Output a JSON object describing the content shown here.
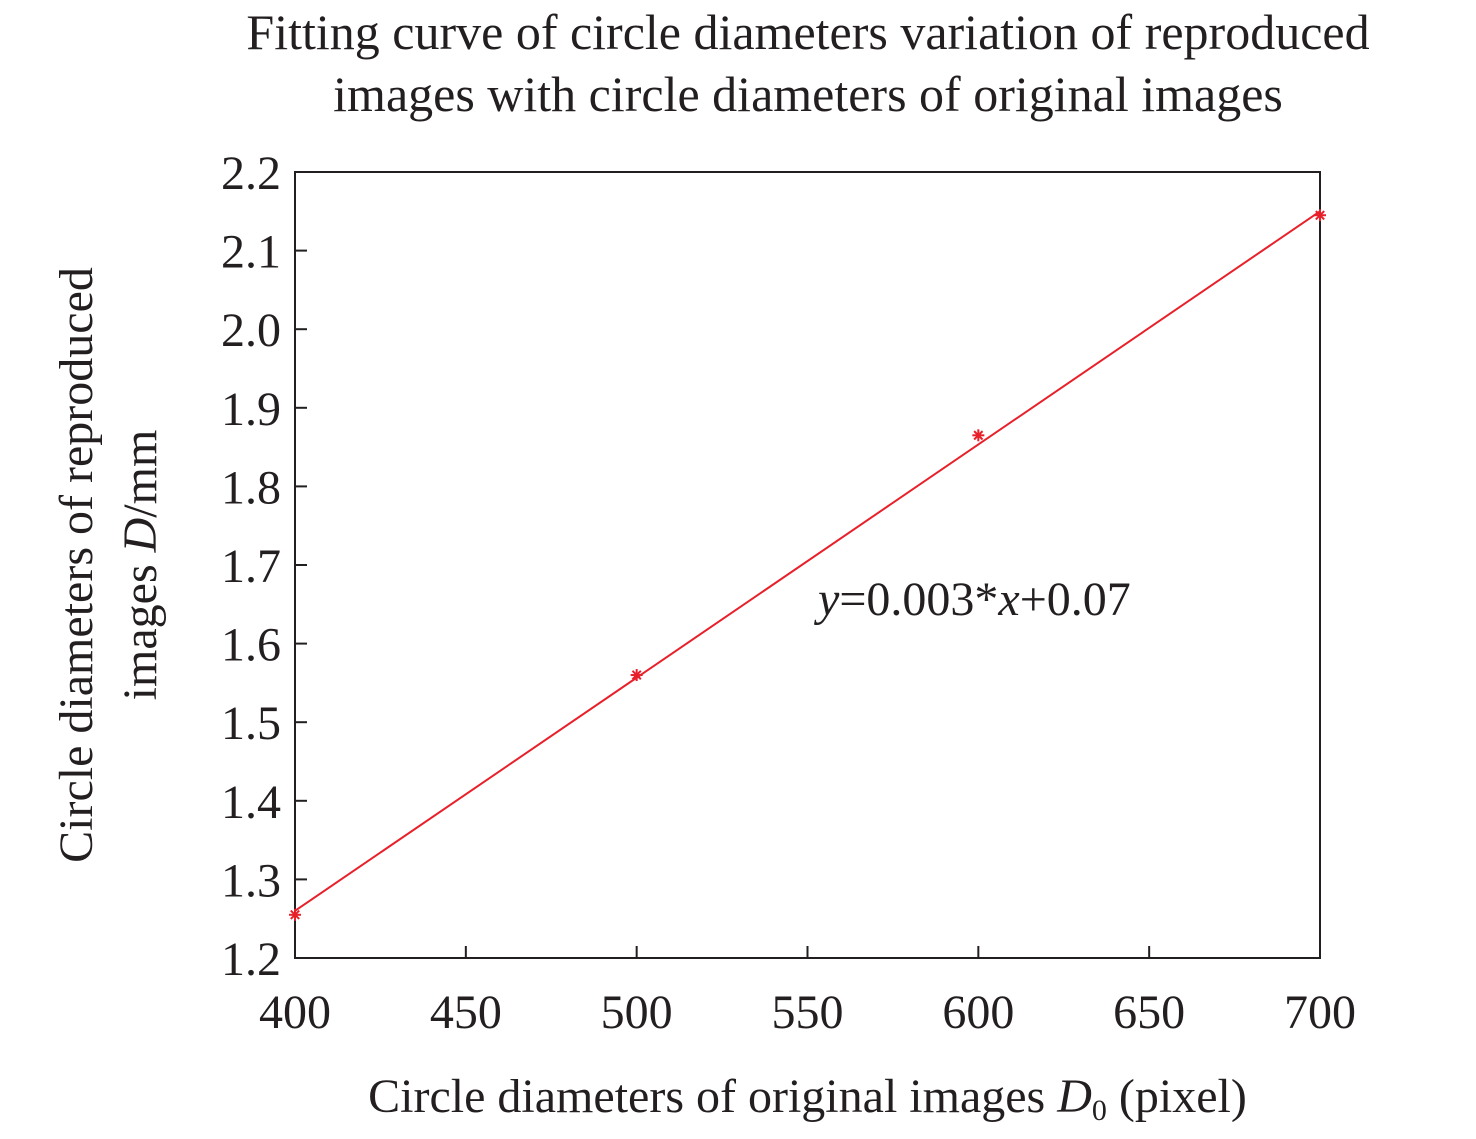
{
  "chart_data": {
    "type": "scatter",
    "title_line1": "Fitting curve of circle diameters variation of reproduced",
    "title_line2": "images with circle diameters of original images",
    "xlabel": {
      "prefix": "Circle diameters of original images ",
      "var": "D",
      "sub": "0",
      "suffix": " (pixel)"
    },
    "ylabel": {
      "line1": "Circle diameters of reproduced",
      "line2_prefix": "images ",
      "line2_var": "D",
      "line2_suffix": "/mm"
    },
    "xlim": [
      400,
      700
    ],
    "ylim": [
      1.2,
      2.2
    ],
    "xticks": [
      "400",
      "450",
      "500",
      "550",
      "600",
      "650",
      "700"
    ],
    "yticks": [
      "1.2",
      "1.3",
      "1.4",
      "1.5",
      "1.6",
      "1.7",
      "1.8",
      "1.9",
      "2.0",
      "2.1",
      "2.2"
    ],
    "grid": false,
    "series": [
      {
        "marker": "asterisk",
        "color": "#e8202a",
        "x": [
          400,
          500,
          600,
          700
        ],
        "y": [
          1.255,
          1.56,
          1.865,
          2.145
        ]
      }
    ],
    "fit_line": {
      "color": "#e8202a",
      "x": [
        400,
        700
      ],
      "y": [
        1.26,
        2.15
      ]
    },
    "annotation": {
      "y_var": "y",
      "mid": "=0.003*",
      "x_var": "x",
      "end": "+0.07"
    }
  }
}
